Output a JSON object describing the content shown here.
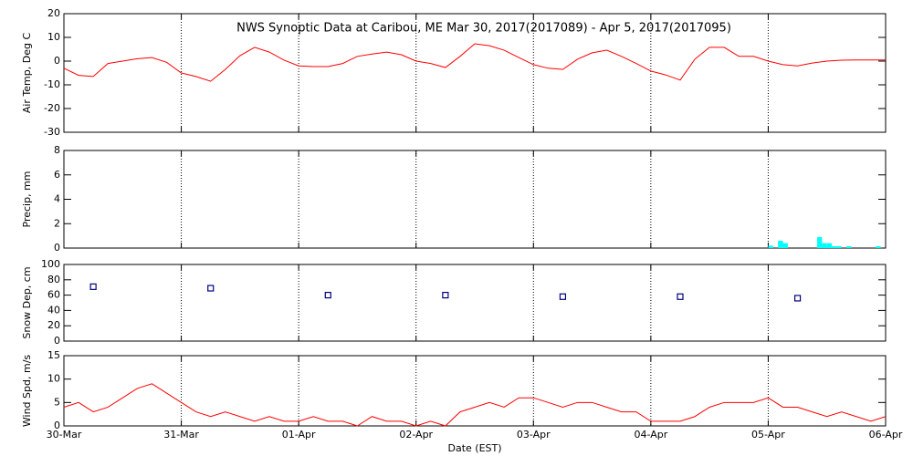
{
  "chart_data": [
    {
      "type": "line",
      "title": "NWS Synoptic Data at Caribou, ME   Mar 30, 2017(2017089) - Apr  5, 2017(2017095)",
      "y_label": "Air Temp, Deg C",
      "color": "#ff0000",
      "x": [
        0,
        3,
        6,
        9,
        12,
        15,
        18,
        21,
        24,
        27,
        30,
        33,
        36,
        39,
        42,
        45,
        48,
        51,
        54,
        57,
        60,
        63,
        66,
        69,
        72,
        75,
        78,
        81,
        84,
        87,
        90,
        93,
        96,
        99,
        102,
        105,
        108,
        111,
        114,
        117,
        120,
        123,
        126,
        129,
        132,
        135,
        138,
        141,
        144,
        147,
        150,
        153,
        156,
        159,
        162,
        165,
        168
      ],
      "values": [
        -3,
        -6,
        -6.5,
        -1,
        0,
        1,
        1.5,
        -0.5,
        -5,
        -6.5,
        -8.5,
        -3.5,
        2.3,
        5.8,
        3.8,
        0.4,
        -2,
        -2.3,
        -2.3,
        -1,
        2,
        3,
        3.8,
        2.7,
        0,
        -1,
        -2.7,
        2,
        7.3,
        6.5,
        4.6,
        1.5,
        -1.5,
        -3,
        -3.5,
        0.8,
        3.5,
        4.6,
        2,
        -1,
        -4.2,
        -5.8,
        -8,
        0.8,
        5.8,
        5.8,
        2,
        2,
        0,
        -1.5,
        -2,
        -0.8,
        0,
        0.4,
        0.5,
        0.5,
        0.5
      ],
      "xlim": [
        0,
        168
      ],
      "ylim": [
        -30,
        20
      ],
      "yticks": [
        -30,
        -20,
        -10,
        0,
        10,
        20
      ]
    },
    {
      "type": "bar",
      "y_label": "Precip, mm",
      "color": "#00ffff",
      "x": [
        144,
        146,
        147,
        154,
        155,
        156,
        157,
        158,
        160,
        166
      ],
      "values": [
        0.2,
        0.6,
        0.4,
        0.9,
        0.4,
        0.4,
        0.15,
        0.15,
        0.15,
        0.15
      ],
      "xlim": [
        0,
        168
      ],
      "ylim": [
        0,
        8
      ],
      "yticks": [
        0,
        2,
        4,
        6,
        8
      ]
    },
    {
      "type": "scatter",
      "y_label": "Snow Dep, cm",
      "color": "#000080",
      "x": [
        6,
        30,
        54,
        78,
        102,
        126,
        150
      ],
      "values": [
        71,
        69,
        60,
        60,
        58,
        58,
        56
      ],
      "xlim": [
        0,
        168
      ],
      "ylim": [
        0,
        100
      ],
      "yticks": [
        0,
        20,
        40,
        60,
        80,
        100
      ]
    },
    {
      "type": "line",
      "y_label": "Wind Spd, m/s",
      "x_label": "Date (EST)",
      "color": "#ff0000",
      "x": [
        0,
        3,
        6,
        9,
        12,
        15,
        18,
        21,
        24,
        27,
        30,
        33,
        36,
        39,
        42,
        45,
        48,
        51,
        54,
        57,
        60,
        63,
        66,
        69,
        72,
        75,
        78,
        81,
        84,
        87,
        90,
        93,
        96,
        99,
        102,
        105,
        108,
        111,
        114,
        117,
        120,
        123,
        126,
        129,
        132,
        135,
        138,
        141,
        144,
        147,
        150,
        153,
        156,
        159,
        162,
        165,
        168
      ],
      "values": [
        4,
        5,
        3,
        4,
        6,
        8,
        9,
        7,
        5,
        3,
        2,
        3,
        2,
        1,
        2,
        1,
        1,
        2,
        1,
        1,
        0,
        2,
        1,
        1,
        0,
        1,
        0,
        3,
        4,
        5,
        4,
        6,
        6,
        5,
        4,
        5,
        5,
        4,
        3,
        3,
        1,
        1,
        1,
        2,
        4,
        5,
        5,
        5,
        6,
        4,
        4,
        3,
        2,
        3,
        2,
        1,
        2
      ],
      "xlim": [
        0,
        168
      ],
      "ylim": [
        0,
        15
      ],
      "yticks": [
        0,
        5,
        10,
        15
      ],
      "xticks": [
        {
          "value": 0,
          "label": "30-Mar"
        },
        {
          "value": 24,
          "label": "31-Mar"
        },
        {
          "value": 48,
          "label": "01-Apr"
        },
        {
          "value": 72,
          "label": "02-Apr"
        },
        {
          "value": 96,
          "label": "03-Apr"
        },
        {
          "value": 120,
          "label": "04-Apr"
        },
        {
          "value": 144,
          "label": "05-Apr"
        },
        {
          "value": 168,
          "label": "06-Apr"
        }
      ]
    }
  ]
}
